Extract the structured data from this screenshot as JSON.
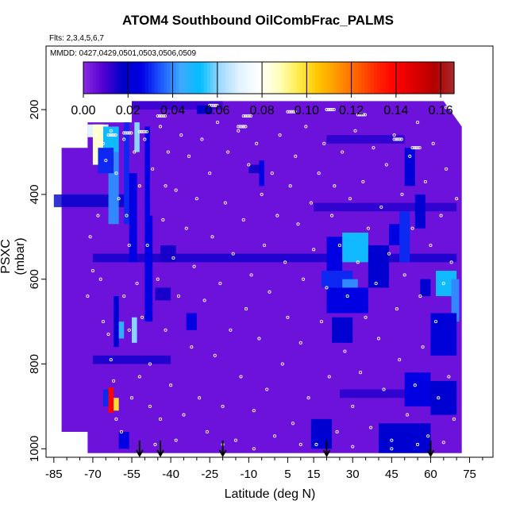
{
  "chart_data": {
    "type": "heatmap",
    "title": "ATOM4 Southbound OilCombFrac_PALMS",
    "subtitle_flights": "Flts: 2,3,4,5,6,7",
    "subtitle_dates": "MMDD: 0427,0429,0501,0503,0506,0509",
    "xlabel": "Latitude (deg N)",
    "ylabel": "PSXC (mbar)",
    "xlim": [
      -88,
      84
    ],
    "ylim": [
      1020,
      50
    ],
    "y_reversed": true,
    "x_ticks": [
      -85,
      -70,
      -55,
      -40,
      -25,
      -10,
      5,
      15,
      30,
      45,
      60,
      75
    ],
    "x_tick_labels": [
      "-85",
      "-70",
      "-55",
      "-40",
      "-25",
      "-10",
      "5",
      "15",
      "30",
      "45",
      "60",
      "75"
    ],
    "y_ticks": [
      200,
      400,
      600,
      800,
      1000
    ],
    "y_tick_labels": [
      "200",
      "400",
      "600",
      "800",
      "1000"
    ],
    "colorbar": {
      "min": 0.0,
      "max": 0.166,
      "ticks": [
        0.0,
        0.02,
        0.04,
        0.06,
        0.08,
        0.1,
        0.12,
        0.14,
        0.16
      ],
      "tick_labels": [
        "0.00",
        "0.02",
        "0.04",
        "0.06",
        "0.08",
        "0.10",
        "0.12",
        "0.14",
        "0.16"
      ],
      "colors": [
        "#8a2be2",
        "#5500d4",
        "#0000c8",
        "#0000e6",
        "#1e5cff",
        "#3fa8ff",
        "#00bfff",
        "#9fd8ff",
        "#e0f3ff",
        "#ffffff",
        "#ffffc0",
        "#ffec50",
        "#ffc800",
        "#ff9600",
        "#ff6400",
        "#ff2800",
        "#ff0000",
        "#dc0000",
        "#b40000",
        "#a52a2a"
      ]
    },
    "background_value": 0.005,
    "profile_arrows_lat": [
      -52,
      -44,
      -20,
      20,
      60
    ],
    "cells": [
      {
        "lat": [
          -72,
          -64
        ],
        "p": [
          235,
          265
        ],
        "v": 0.07
      },
      {
        "lat": [
          -70,
          -66
        ],
        "p": [
          235,
          330
        ],
        "v": 0.085
      },
      {
        "lat": [
          -66,
          -60
        ],
        "p": [
          240,
          300
        ],
        "v": 0.05
      },
      {
        "lat": [
          -64,
          -60
        ],
        "p": [
          300,
          470
        ],
        "v": 0.04
      },
      {
        "lat": [
          -68,
          -62
        ],
        "p": [
          290,
          350
        ],
        "v": 0.03
      },
      {
        "lat": [
          -58,
          -56
        ],
        "p": [
          230,
          470
        ],
        "v": 0.03
      },
      {
        "lat": [
          -54,
          -52
        ],
        "p": [
          230,
          300
        ],
        "v": 0.06
      },
      {
        "lat": [
          -56,
          -53
        ],
        "p": [
          350,
          560
        ],
        "v": 0.025
      },
      {
        "lat": [
          -50,
          -48
        ],
        "p": [
          240,
          450
        ],
        "v": 0.025
      },
      {
        "lat": [
          -50,
          -47
        ],
        "p": [
          450,
          700
        ],
        "v": 0.025
      },
      {
        "lat": [
          -55,
          -53
        ],
        "p": [
          690,
          750
        ],
        "v": 0.06
      },
      {
        "lat": [
          -62,
          -60
        ],
        "p": [
          640,
          760
        ],
        "v": 0.02
      },
      {
        "lat": [
          -60,
          -58
        ],
        "p": [
          700,
          740
        ],
        "v": 0.045
      },
      {
        "lat": [
          -64,
          -62
        ],
        "p": [
          855,
          915
        ],
        "v": 0.14
      },
      {
        "lat": [
          -62,
          -60
        ],
        "p": [
          880,
          910
        ],
        "v": 0.1
      },
      {
        "lat": [
          -66,
          -64
        ],
        "p": [
          860,
          900
        ],
        "v": 0.03
      },
      {
        "lat": [
          -60,
          -56
        ],
        "p": [
          960,
          1000
        ],
        "v": 0.025
      },
      {
        "lat": [
          -34,
          -30
        ],
        "p": [
          680,
          720
        ],
        "v": 0.025
      },
      {
        "lat": [
          -46,
          -40
        ],
        "p": [
          620,
          650
        ],
        "v": 0.015
      },
      {
        "lat": [
          -44,
          -38
        ],
        "p": [
          520,
          560
        ],
        "v": 0.015
      },
      {
        "lat": [
          -30,
          -24
        ],
        "p": [
          190,
          210
        ],
        "v": 0.018
      },
      {
        "lat": [
          -10,
          -4
        ],
        "p": [
          330,
          350
        ],
        "v": 0.015
      },
      {
        "lat": [
          -6,
          -4
        ],
        "p": [
          320,
          380
        ],
        "v": 0.025
      },
      {
        "lat": [
          20,
          26
        ],
        "p": [
          500,
          580
        ],
        "v": 0.025
      },
      {
        "lat": [
          26,
          36
        ],
        "p": [
          490,
          560
        ],
        "v": 0.05
      },
      {
        "lat": [
          18,
          30
        ],
        "p": [
          580,
          620
        ],
        "v": 0.03
      },
      {
        "lat": [
          26,
          32
        ],
        "p": [
          600,
          640
        ],
        "v": 0.04
      },
      {
        "lat": [
          20,
          36
        ],
        "p": [
          620,
          680
        ],
        "v": 0.025
      },
      {
        "lat": [
          22,
          30
        ],
        "p": [
          690,
          750
        ],
        "v": 0.02
      },
      {
        "lat": [
          36,
          44
        ],
        "p": [
          520,
          620
        ],
        "v": 0.02
      },
      {
        "lat": [
          44,
          50
        ],
        "p": [
          470,
          520
        ],
        "v": 0.025
      },
      {
        "lat": [
          48,
          52
        ],
        "p": [
          440,
          560
        ],
        "v": 0.03
      },
      {
        "lat": [
          50,
          54
        ],
        "p": [
          290,
          380
        ],
        "v": 0.022
      },
      {
        "lat": [
          54,
          58
        ],
        "p": [
          400,
          480
        ],
        "v": 0.02
      },
      {
        "lat": [
          56,
          60
        ],
        "p": [
          600,
          640
        ],
        "v": 0.02
      },
      {
        "lat": [
          62,
          70
        ],
        "p": [
          580,
          640
        ],
        "v": 0.05
      },
      {
        "lat": [
          68,
          71
        ],
        "p": [
          600,
          700
        ],
        "v": 0.04
      },
      {
        "lat": [
          60,
          70
        ],
        "p": [
          680,
          780
        ],
        "v": 0.022
      },
      {
        "lat": [
          50,
          60
        ],
        "p": [
          820,
          900
        ],
        "v": 0.025
      },
      {
        "lat": [
          14,
          22
        ],
        "p": [
          930,
          1000
        ],
        "v": 0.02
      },
      {
        "lat": [
          40,
          60
        ],
        "p": [
          940,
          1010
        ],
        "v": 0.02
      },
      {
        "lat": [
          60,
          70
        ],
        "p": [
          840,
          920
        ],
        "v": 0.02
      }
    ],
    "blue_bands": [
      {
        "lat": [
          -70,
          70
        ],
        "p": [
          540,
          560
        ],
        "v": 0.016
      },
      {
        "lat": [
          -85,
          -55
        ],
        "p": [
          400,
          430
        ],
        "v": 0.018
      },
      {
        "lat": [
          15,
          70
        ],
        "p": [
          420,
          440
        ],
        "v": 0.014
      },
      {
        "lat": [
          -55,
          -20
        ],
        "p": [
          180,
          200
        ],
        "v": 0.012
      },
      {
        "lat": [
          20,
          50
        ],
        "p": [
          260,
          280
        ],
        "v": 0.014
      },
      {
        "lat": [
          -70,
          -40
        ],
        "p": [
          780,
          800
        ],
        "v": 0.016
      },
      {
        "lat": [
          25,
          70
        ],
        "p": [
          860,
          880
        ],
        "v": 0.014
      }
    ],
    "sample_points": [
      [
        -69,
        260
      ],
      [
        -66,
        280
      ],
      [
        -65,
        320
      ],
      [
        -63,
        250
      ],
      [
        -61,
        350
      ],
      [
        -60,
        410
      ],
      [
        -58,
        270
      ],
      [
        -57,
        450
      ],
      [
        -56,
        520
      ],
      [
        -54,
        300
      ],
      [
        -53,
        610
      ],
      [
        -52,
        380
      ],
      [
        -51,
        690
      ],
      [
        -50,
        270
      ],
      [
        -49,
        520
      ],
      [
        -48,
        800
      ],
      [
        -47,
        340
      ],
      [
        -45,
        600
      ],
      [
        -44,
        240
      ],
      [
        -43,
        460
      ],
      [
        -42,
        720
      ],
      [
        -41,
        300
      ],
      [
        -40,
        850
      ],
      [
        -39,
        550
      ],
      [
        -38,
        390
      ],
      [
        -37,
        640
      ],
      [
        -36,
        260
      ],
      [
        -35,
        920
      ],
      [
        -34,
        480
      ],
      [
        -33,
        310
      ],
      [
        -32,
        760
      ],
      [
        -31,
        570
      ],
      [
        -30,
        410
      ],
      [
        -29,
        880
      ],
      [
        -28,
        270
      ],
      [
        -27,
        650
      ],
      [
        -26,
        960
      ],
      [
        -25,
        350
      ],
      [
        -24,
        500
      ],
      [
        -23,
        780
      ],
      [
        -22,
        230
      ],
      [
        -21,
        610
      ],
      [
        -20,
        900
      ],
      [
        -19,
        420
      ],
      [
        -18,
        300
      ],
      [
        -17,
        720
      ],
      [
        -16,
        540
      ],
      [
        -15,
        980
      ],
      [
        -14,
        250
      ],
      [
        -13,
        830
      ],
      [
        -12,
        460
      ],
      [
        -11,
        670
      ],
      [
        -10,
        330
      ],
      [
        -9,
        590
      ],
      [
        -8,
        910
      ],
      [
        -7,
        280
      ],
      [
        -6,
        740
      ],
      [
        -5,
        400
      ],
      [
        -4,
        520
      ],
      [
        -3,
        860
      ],
      [
        -2,
        630
      ],
      [
        -1,
        350
      ],
      [
        0,
        970
      ],
      [
        1,
        450
      ],
      [
        2,
        260
      ],
      [
        3,
        800
      ],
      [
        4,
        560
      ],
      [
        5,
        690
      ],
      [
        6,
        380
      ],
      [
        7,
        940
      ],
      [
        8,
        310
      ],
      [
        9,
        470
      ],
      [
        10,
        750
      ],
      [
        11,
        600
      ],
      [
        12,
        240
      ],
      [
        13,
        880
      ],
      [
        14,
        420
      ],
      [
        15,
        530
      ],
      [
        16,
        990
      ],
      [
        17,
        350
      ],
      [
        18,
        700
      ],
      [
        19,
        280
      ],
      [
        20,
        620
      ],
      [
        21,
        830
      ],
      [
        22,
        450
      ],
      [
        23,
        380
      ],
      [
        24,
        960
      ],
      [
        25,
        520
      ],
      [
        26,
        300
      ],
      [
        27,
        770
      ],
      [
        28,
        640
      ],
      [
        29,
        410
      ],
      [
        30,
        900
      ],
      [
        31,
        250
      ],
      [
        32,
        560
      ],
      [
        33,
        820
      ],
      [
        34,
        370
      ],
      [
        35,
        690
      ],
      [
        36,
        480
      ],
      [
        37,
        950
      ],
      [
        38,
        290
      ],
      [
        39,
        610
      ],
      [
        40,
        740
      ],
      [
        41,
        430
      ],
      [
        42,
        860
      ],
      [
        43,
        330
      ],
      [
        44,
        540
      ],
      [
        45,
        980
      ],
      [
        46,
        260
      ],
      [
        47,
        670
      ],
      [
        48,
        790
      ],
      [
        49,
        400
      ],
      [
        50,
        590
      ],
      [
        51,
        920
      ],
      [
        52,
        310
      ],
      [
        53,
        480
      ],
      [
        54,
        850
      ],
      [
        55,
        230
      ],
      [
        56,
        640
      ],
      [
        57,
        760
      ],
      [
        58,
        370
      ],
      [
        59,
        970
      ],
      [
        60,
        520
      ],
      [
        61,
        280
      ],
      [
        62,
        700
      ],
      [
        63,
        880
      ],
      [
        64,
        450
      ],
      [
        65,
        610
      ],
      [
        66,
        340
      ],
      [
        67,
        830
      ],
      [
        68,
        560
      ],
      [
        69,
        930
      ],
      [
        70,
        410
      ],
      [
        -67,
        600
      ],
      [
        -64,
        730
      ],
      [
        -62,
        840
      ],
      [
        -59,
        960
      ],
      [
        -55,
        880
      ],
      [
        -46,
        990
      ],
      [
        -44,
        930
      ],
      [
        -38,
        980
      ],
      [
        -20,
        990
      ],
      [
        -8,
        1000
      ],
      [
        10,
        990
      ],
      [
        30,
        995
      ],
      [
        45,
        1000
      ],
      [
        55,
        990
      ],
      [
        65,
        985
      ],
      [
        -66,
        700
      ],
      [
        -63,
        790
      ],
      [
        -61,
        930
      ],
      [
        -58,
        640
      ],
      [
        -71,
        500
      ],
      [
        -70,
        580
      ],
      [
        -72,
        640
      ],
      [
        -68,
        450
      ],
      [
        -56,
        720
      ],
      [
        -52,
        830
      ],
      [
        -48,
        900
      ],
      [
        -42,
        380
      ]
    ],
    "dense_points": [
      [
        -60,
        200
      ],
      [
        -45,
        215
      ],
      [
        -25,
        190
      ],
      [
        -12,
        215
      ],
      [
        5,
        205
      ],
      [
        20,
        200
      ],
      [
        32,
        212
      ],
      [
        46,
        270
      ],
      [
        53,
        290
      ],
      [
        66,
        195
      ],
      [
        -64,
        260
      ],
      [
        -58,
        255
      ],
      [
        -52,
        252
      ],
      [
        -14,
        240
      ]
    ]
  }
}
